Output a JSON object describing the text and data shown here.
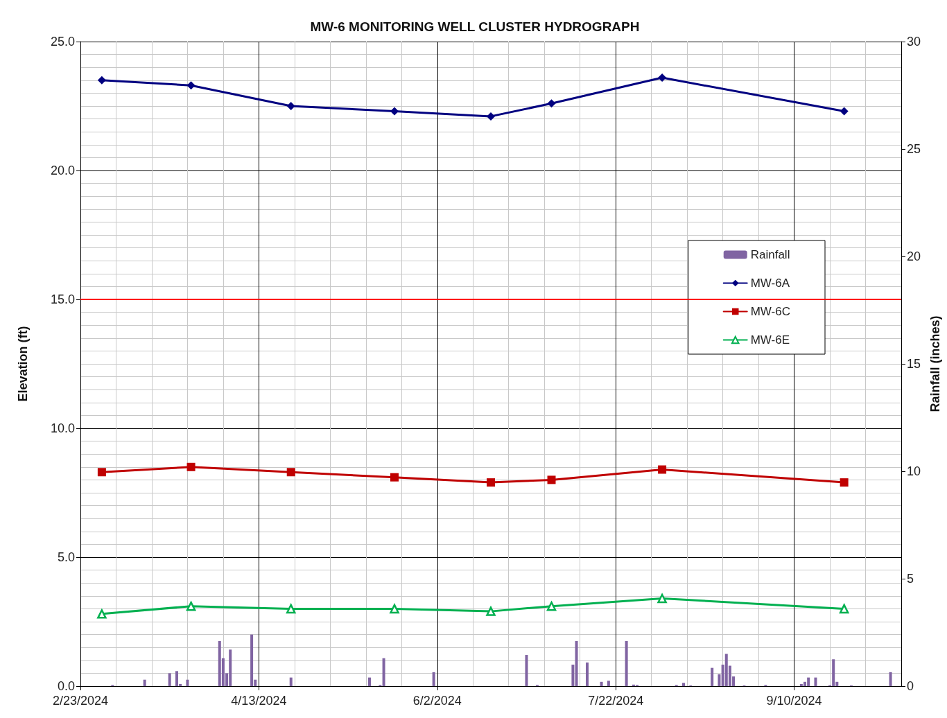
{
  "chart_data": {
    "type": "line",
    "title": "MW-6 MONITORING WELL CLUSTER HYDROGRAPH",
    "ylabel": "Elevation (ft)",
    "y2label": "Rainfall (inches)",
    "xlim": [
      "2024-02-23",
      "2024-10-10"
    ],
    "xticks": [
      {
        "value": "2024-02-23",
        "label": "2/23/2024"
      },
      {
        "value": "2024-04-13",
        "label": "4/13/2024"
      },
      {
        "value": "2024-06-02",
        "label": "6/2/2024"
      },
      {
        "value": "2024-07-22",
        "label": "7/22/2024"
      },
      {
        "value": "2024-09-10",
        "label": "9/10/2024"
      }
    ],
    "ylim": [
      0,
      25
    ],
    "yticks": [
      {
        "value": 0,
        "label": "0.0"
      },
      {
        "value": 5,
        "label": "5.0"
      },
      {
        "value": 10,
        "label": "10.0"
      },
      {
        "value": 15,
        "label": "15.0"
      },
      {
        "value": 20,
        "label": "20.0"
      },
      {
        "value": 25,
        "label": "25.0"
      }
    ],
    "y2lim": [
      0,
      30
    ],
    "y2ticks": [
      0,
      5,
      10,
      15,
      20,
      25,
      30
    ],
    "grid": true,
    "legend": "right",
    "line_style": "solid",
    "ref_lines": [
      {
        "axis": "y",
        "value": 15,
        "color": "#ff0000"
      }
    ],
    "series": [
      {
        "name": "Rainfall",
        "type": "bar",
        "axis": "y2",
        "color": "#8064a2",
        "x": [
          "2024-03-03",
          "2024-03-12",
          "2024-03-19",
          "2024-03-21",
          "2024-03-22",
          "2024-03-24",
          "2024-04-02",
          "2024-04-03",
          "2024-04-04",
          "2024-04-05",
          "2024-04-11",
          "2024-04-12",
          "2024-04-22",
          "2024-05-14",
          "2024-05-17",
          "2024-05-18",
          "2024-06-01",
          "2024-06-27",
          "2024-06-30",
          "2024-07-10",
          "2024-07-11",
          "2024-07-14",
          "2024-07-18",
          "2024-07-20",
          "2024-07-25",
          "2024-07-27",
          "2024-07-28",
          "2024-08-08",
          "2024-08-10",
          "2024-08-12",
          "2024-08-18",
          "2024-08-20",
          "2024-08-21",
          "2024-08-22",
          "2024-08-23",
          "2024-08-24",
          "2024-08-27",
          "2024-09-02",
          "2024-09-12",
          "2024-09-13",
          "2024-09-14",
          "2024-09-16",
          "2024-09-20",
          "2024-09-21",
          "2024-09-22",
          "2024-09-26",
          "2024-10-07"
        ],
        "values": [
          0.05,
          0.3,
          0.6,
          0.7,
          0.1,
          0.3,
          2.1,
          1.3,
          0.6,
          1.7,
          2.4,
          0.3,
          0.4,
          0.4,
          0.05,
          1.3,
          0.65,
          1.45,
          0.05,
          1.0,
          2.1,
          1.1,
          0.2,
          0.25,
          2.1,
          0.07,
          0.05,
          0.05,
          0.15,
          0.03,
          0.85,
          0.55,
          1.0,
          1.5,
          0.95,
          0.45,
          0.03,
          0.05,
          0.1,
          0.2,
          0.4,
          0.4,
          0.04,
          1.25,
          0.2,
          0.03,
          0.65
        ]
      },
      {
        "name": "MW-6A",
        "marker": "diamond",
        "color": "#000080",
        "x": [
          "2024-02-29",
          "2024-03-25",
          "2024-04-22",
          "2024-05-21",
          "2024-06-17",
          "2024-07-04",
          "2024-08-04",
          "2024-09-24"
        ],
        "values": [
          23.5,
          23.3,
          22.5,
          22.3,
          22.1,
          22.6,
          23.6,
          22.3
        ]
      },
      {
        "name": "MW-6C",
        "marker": "square",
        "color": "#c00000",
        "x": [
          "2024-02-29",
          "2024-03-25",
          "2024-04-22",
          "2024-05-21",
          "2024-06-17",
          "2024-07-04",
          "2024-08-04",
          "2024-09-24"
        ],
        "values": [
          8.3,
          8.5,
          8.3,
          8.1,
          7.9,
          8.0,
          8.4,
          7.9
        ]
      },
      {
        "name": "MW-6E",
        "marker": "triangle",
        "color": "#00b050",
        "x": [
          "2024-02-29",
          "2024-03-25",
          "2024-04-22",
          "2024-05-21",
          "2024-06-17",
          "2024-07-04",
          "2024-08-04",
          "2024-09-24"
        ],
        "values": [
          2.8,
          3.1,
          3.0,
          3.0,
          2.9,
          3.1,
          3.4,
          3.0
        ]
      }
    ]
  }
}
